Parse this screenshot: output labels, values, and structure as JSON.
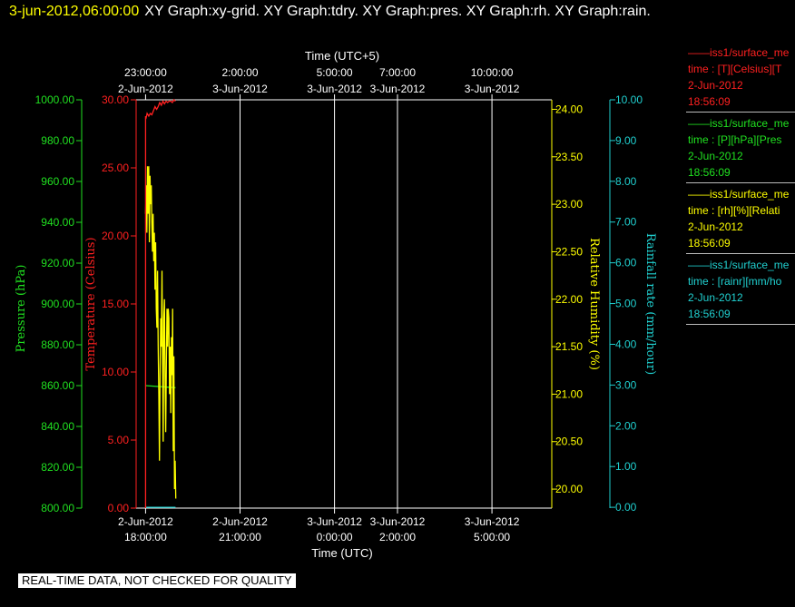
{
  "page_title": {
    "datetime": "3-jun-2012,06:00:00",
    "graphs": "XY Graph:xy-grid.  XY Graph:tdry.  XY Graph:pres.  XY Graph:rh.  XY Graph:rain."
  },
  "legend": [
    {
      "line1": "iss1/surface_me",
      "line2": "time : [T][Celsius][T",
      "line3": "2-Jun-2012",
      "line4": "18:56:09",
      "color": "#ff2020"
    },
    {
      "line1": "iss1/surface_me",
      "line2": "time : [P][hPa][Pres",
      "line3": "2-Jun-2012",
      "line4": "18:56:09",
      "color": "#20e020"
    },
    {
      "line1": "iss1/surface_me",
      "line2": "time : [rh][%][Relati",
      "line3": "2-Jun-2012",
      "line4": "18:56:09",
      "color": "#ffff00"
    },
    {
      "line1": "iss1/surface_me",
      "line2": "time : [rainr][mm/ho",
      "line3": "2-Jun-2012",
      "line4": "18:56:09",
      "color": "#20d0d0"
    }
  ],
  "disclaimer": "REAL-TIME DATA, NOT CHECKED FOR QUALITY",
  "chart_data": {
    "type": "line",
    "x_bottom_label": "Time (UTC)",
    "x_top_label": "Time (UTC+5)",
    "x_hours_range": [
      17.7,
      30.9
    ],
    "x_ticks_bottom": [
      {
        "h": 18,
        "date": "2-Jun-2012",
        "time": "18:00:00"
      },
      {
        "h": 21,
        "date": "2-Jun-2012",
        "time": "21:00:00"
      },
      {
        "h": 24,
        "date": "3-Jun-2012",
        "time": "0:00:00"
      },
      {
        "h": 26,
        "date": "3-Jun-2012",
        "time": "2:00:00"
      },
      {
        "h": 29,
        "date": "3-Jun-2012",
        "time": "5:00:00"
      }
    ],
    "x_ticks_top": [
      {
        "h": 18,
        "time": "23:00:00",
        "date": "2-Jun-2012"
      },
      {
        "h": 21,
        "time": "2:00:00",
        "date": "3-Jun-2012"
      },
      {
        "h": 24,
        "time": "5:00:00",
        "date": "3-Jun-2012"
      },
      {
        "h": 26,
        "time": "7:00:00",
        "date": "3-Jun-2012"
      },
      {
        "h": 29,
        "time": "10:00:00",
        "date": "3-Jun-2012"
      }
    ],
    "axes": [
      {
        "key": "pres",
        "label": "Pressure (hPa)",
        "color": "#20e020",
        "min": 800,
        "max": 1000,
        "ticks": [
          "800.00",
          "820.00",
          "840.00",
          "860.00",
          "880.00",
          "900.00",
          "920.00",
          "940.00",
          "960.00",
          "980.00",
          "1000.00"
        ]
      },
      {
        "key": "tdry",
        "label": "Temperature (Celsius)",
        "color": "#ff2020",
        "min": 0,
        "max": 30,
        "ticks": [
          "0.00",
          "5.00",
          "10.00",
          "15.00",
          "20.00",
          "25.00",
          "30.00"
        ]
      },
      {
        "key": "rh",
        "label": "Relative Humidity (%)",
        "color": "#ffff00",
        "min": 19.8,
        "max": 24.1,
        "ticks": [
          "20.00",
          "20.50",
          "21.00",
          "21.50",
          "22.00",
          "22.50",
          "23.00",
          "23.50",
          "24.00"
        ]
      },
      {
        "key": "rain",
        "label": "Rainfall rate (mm/hour)",
        "color": "#20d0d0",
        "min": -0.02,
        "max": 10.0,
        "ticks": [
          "0.00",
          "1.00",
          "2.00",
          "3.00",
          "4.00",
          "5.00",
          "6.00",
          "7.00",
          "8.00",
          "9.00",
          "10.00"
        ]
      }
    ],
    "series": [
      {
        "name": "tdry",
        "axis": "tdry",
        "color": "#ff2020",
        "x": [
          18.0,
          18.02,
          18.05,
          18.1,
          18.15,
          18.2,
          18.25,
          18.3,
          18.35,
          18.4,
          18.45,
          18.5,
          18.55,
          18.6,
          18.65,
          18.7,
          18.75,
          18.8,
          18.85,
          18.9,
          18.95
        ],
        "y": [
          28.8,
          28.7,
          29.0,
          28.8,
          29.0,
          28.9,
          29.2,
          29.5,
          29.3,
          29.5,
          29.8,
          29.6,
          29.9,
          29.7,
          29.9,
          29.8,
          29.9,
          29.9,
          29.8,
          30.0,
          29.9
        ]
      },
      {
        "name": "pres",
        "axis": "pres",
        "color": "#20e020",
        "x": [
          18.0,
          18.95
        ],
        "y": [
          860.0,
          859.0
        ]
      },
      {
        "name": "rh",
        "axis": "rh",
        "color": "#ffff00",
        "x": [
          18.0,
          18.02,
          18.04,
          18.06,
          18.08,
          18.1,
          18.12,
          18.14,
          18.16,
          18.18,
          18.2,
          18.22,
          18.24,
          18.26,
          18.28,
          18.3,
          18.32,
          18.34,
          18.36,
          18.38,
          18.4,
          18.42,
          18.44,
          18.46,
          18.48,
          18.5,
          18.52,
          18.54,
          18.56,
          18.58,
          18.6,
          18.62,
          18.64,
          18.66,
          18.68,
          18.7,
          18.72,
          18.74,
          18.76,
          18.78,
          18.8,
          18.82,
          18.84,
          18.86,
          18.88,
          18.9,
          18.92,
          18.94,
          18.96
        ],
        "y": [
          22.9,
          23.2,
          22.7,
          23.4,
          22.9,
          23.4,
          22.6,
          23.3,
          23.0,
          23.2,
          22.8,
          22.5,
          22.9,
          22.4,
          22.7,
          22.1,
          22.6,
          21.9,
          21.7,
          22.3,
          21.5,
          21.0,
          20.3,
          21.2,
          21.8,
          21.5,
          22.3,
          21.4,
          20.5,
          21.8,
          22.0,
          21.2,
          20.6,
          21.3,
          21.9,
          21.5,
          21.9,
          21.8,
          21.0,
          21.5,
          20.8,
          21.6,
          21.2,
          21.9,
          20.4,
          21.4,
          20.0,
          20.3,
          19.9
        ]
      },
      {
        "name": "rain",
        "axis": "rain",
        "color": "#20d0d0",
        "x": [
          18.0,
          18.95
        ],
        "y": [
          0.0,
          0.0
        ]
      }
    ]
  }
}
